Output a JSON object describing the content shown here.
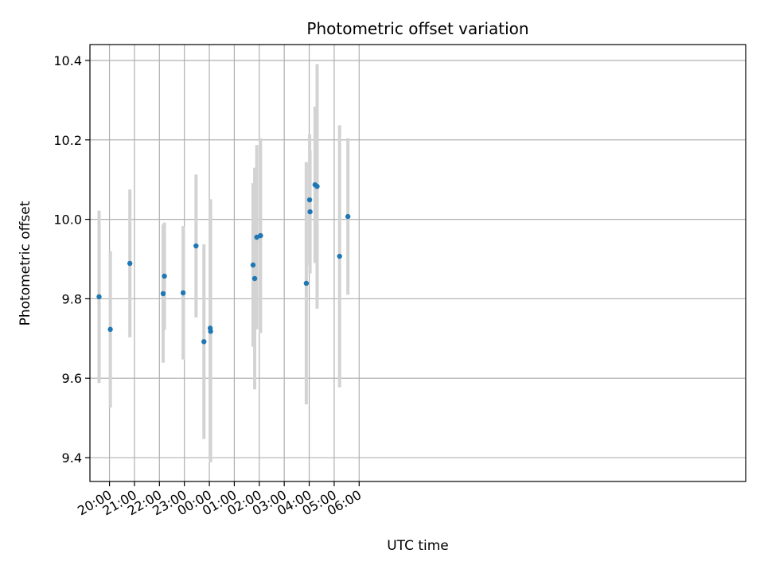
{
  "chart_data": {
    "type": "scatter",
    "title": "Photometric offset variation",
    "xlabel": "UTC time",
    "ylabel": "Photometric offset",
    "x_format": "time",
    "xlim": [
      "19:13",
      "21:29+1"
    ],
    "ylim": [
      9.34,
      10.44
    ],
    "x_ticks": [
      "20:00",
      "21:00",
      "22:00",
      "23:00",
      "00:00",
      "01:00",
      "02:00",
      "03:00",
      "04:00",
      "05:00",
      "06:00"
    ],
    "y_ticks": [
      9.4,
      9.6,
      9.8,
      10.0,
      10.2,
      10.4
    ],
    "y_tick_labels": [
      "9.4",
      "9.6",
      "9.8",
      "10.0",
      "10.2",
      "10.4"
    ],
    "grid": true,
    "marker_color": "#1f77b4",
    "errorbar_color": "#d3d3d3",
    "points": [
      {
        "time": "19:35",
        "y": 9.805,
        "err": 0.217
      },
      {
        "time": "20:02",
        "y": 9.723,
        "err": 0.197
      },
      {
        "time": "20:49",
        "y": 9.889,
        "err": 0.186
      },
      {
        "time": "22:09",
        "y": 9.813,
        "err": 0.174
      },
      {
        "time": "22:12",
        "y": 9.857,
        "err": 0.135
      },
      {
        "time": "22:57",
        "y": 9.815,
        "err": 0.168
      },
      {
        "time": "23:28",
        "y": 9.933,
        "err": 0.18
      },
      {
        "time": "23:47",
        "y": 9.692,
        "err": 0.245
      },
      {
        "time": "00:02",
        "y": 9.726,
        "err": 0.325
      },
      {
        "time": "00:03",
        "y": 9.718,
        "err": 0.33
      },
      {
        "time": "01:45",
        "y": 9.885,
        "err": 0.206
      },
      {
        "time": "01:49",
        "y": 9.851,
        "err": 0.279
      },
      {
        "time": "01:54",
        "y": 9.955,
        "err": 0.232
      },
      {
        "time": "02:03",
        "y": 9.959,
        "err": 0.245
      },
      {
        "time": "03:53",
        "y": 9.839,
        "err": 0.305
      },
      {
        "time": "04:01",
        "y": 10.049,
        "err": 0.165
      },
      {
        "time": "04:02",
        "y": 10.019,
        "err": 0.155
      },
      {
        "time": "04:14",
        "y": 10.087,
        "err": 0.197
      },
      {
        "time": "04:19",
        "y": 10.083,
        "err": 0.308
      },
      {
        "time": "05:13",
        "y": 9.907,
        "err": 0.33
      },
      {
        "time": "05:33",
        "y": 10.007,
        "err": 0.197
      }
    ]
  }
}
